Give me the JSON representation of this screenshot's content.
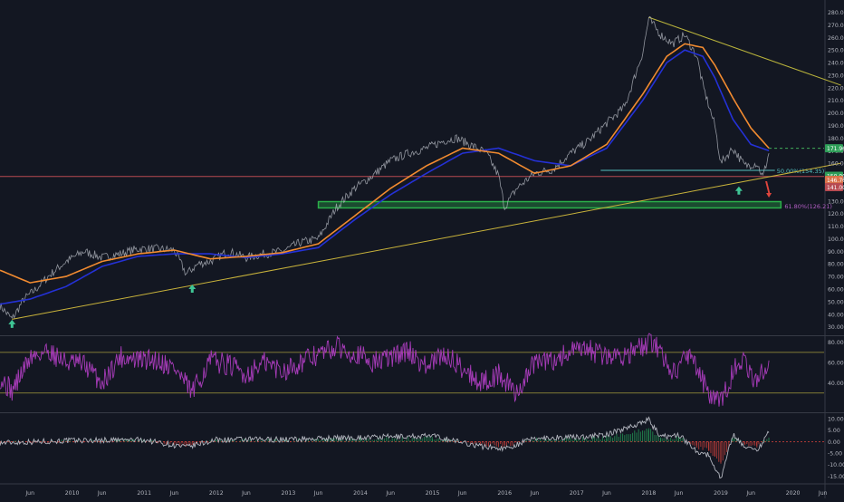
{
  "chart_data": [
    {
      "type": "line",
      "panel": "price",
      "y_scale": "linear",
      "ylim": [
        24,
        284
      ],
      "y_ticks": [
        "30.00",
        "40.00",
        "50.00",
        "60.00",
        "70.00",
        "80.00",
        "90.00",
        "100.00",
        "110.00",
        "120.00",
        "130.00",
        "140.00",
        "150.00",
        "160.00",
        "170.00",
        "180.00",
        "190.00",
        "200.00",
        "210.00",
        "220.00",
        "230.00",
        "240.00",
        "250.00",
        "260.00",
        "270.00",
        "280.00"
      ],
      "series": [
        {
          "role": "price",
          "color": "#b2b5be",
          "x": [
            "2009-01",
            "2009-03",
            "2009-05",
            "2009-07",
            "2009-09",
            "2009-12",
            "2010-03",
            "2010-06",
            "2010-09",
            "2010-12",
            "2011-03",
            "2011-06",
            "2011-08",
            "2011-10",
            "2011-12",
            "2012-03",
            "2012-06",
            "2012-09",
            "2012-12",
            "2013-03",
            "2013-06",
            "2013-09",
            "2013-12",
            "2014-03",
            "2014-06",
            "2014-09",
            "2014-12",
            "2015-03",
            "2015-05",
            "2015-08",
            "2015-10",
            "2015-12",
            "2016-01",
            "2016-03",
            "2016-06",
            "2016-09",
            "2016-12",
            "2017-03",
            "2017-06",
            "2017-09",
            "2017-12",
            "2018-01",
            "2018-03",
            "2018-05",
            "2018-07",
            "2018-09",
            "2018-10",
            "2018-12",
            "2019-01",
            "2019-03",
            "2019-05",
            "2019-07",
            "2019-08",
            "2019-09"
          ],
          "y": [
            47,
            36,
            52,
            60,
            70,
            82,
            90,
            85,
            88,
            92,
            92,
            91,
            72,
            80,
            82,
            90,
            85,
            88,
            90,
            97,
            100,
            125,
            140,
            150,
            162,
            168,
            172,
            178,
            180,
            173,
            168,
            150,
            125,
            140,
            152,
            155,
            168,
            178,
            192,
            205,
            248,
            275,
            262,
            255,
            262,
            245,
            222,
            190,
            160,
            172,
            158,
            160,
            149,
            168
          ]
        },
        {
          "role": "moving-average-1",
          "color": "#2431d6",
          "x": [
            "2009-01",
            "2009-06",
            "2009-12",
            "2010-06",
            "2010-12",
            "2011-06",
            "2011-12",
            "2012-06",
            "2012-12",
            "2013-06",
            "2013-12",
            "2014-06",
            "2014-12",
            "2015-06",
            "2015-12",
            "2016-06",
            "2016-12",
            "2017-06",
            "2017-12",
            "2018-04",
            "2018-07",
            "2018-10",
            "2018-12",
            "2019-03",
            "2019-06",
            "2019-09"
          ],
          "y": [
            48,
            52,
            62,
            78,
            86,
            88,
            88,
            85,
            88,
            93,
            115,
            135,
            152,
            168,
            172,
            162,
            158,
            172,
            210,
            240,
            250,
            245,
            228,
            195,
            175,
            170
          ]
        },
        {
          "role": "moving-average-2",
          "color": "#f28b30",
          "x": [
            "2009-01",
            "2009-06",
            "2009-12",
            "2010-06",
            "2010-12",
            "2011-06",
            "2011-12",
            "2012-06",
            "2012-12",
            "2013-06",
            "2013-12",
            "2014-06",
            "2014-12",
            "2015-06",
            "2015-12",
            "2016-06",
            "2016-12",
            "2017-06",
            "2017-12",
            "2018-04",
            "2018-07",
            "2018-10",
            "2018-12",
            "2019-03",
            "2019-06",
            "2019-09"
          ],
          "y": [
            75,
            65,
            70,
            82,
            88,
            91,
            84,
            86,
            89,
            96,
            118,
            140,
            158,
            172,
            168,
            152,
            158,
            175,
            215,
            245,
            255,
            252,
            238,
            212,
            188,
            172
          ]
        }
      ],
      "trendlines": [
        {
          "name": "long-term-support",
          "color": "#c9b33b",
          "from": [
            "2009-03",
            36
          ],
          "to": [
            "2020-09",
            160
          ]
        },
        {
          "name": "falling-resistance",
          "color": "#b9b33b",
          "from": [
            "2018-01",
            276
          ],
          "to": [
            "2020-09",
            222
          ]
        }
      ],
      "horizontal_lines": [
        {
          "name": "red-level",
          "y": 149.5,
          "color": "#b74a51"
        },
        {
          "name": "green-dashed-level",
          "y": 171.9,
          "color": "#43b05c"
        }
      ],
      "zones": [
        {
          "name": "support-zone",
          "y": [
            124.5,
            129.5
          ],
          "x": [
            "2013-06",
            "2019-11"
          ],
          "color": "#2bb04a"
        }
      ],
      "fib_levels": [
        {
          "label": "50.00%(154.35)",
          "y": 154.35,
          "x": [
            "2017-05",
            "2019-10"
          ],
          "color": "#55c2c0"
        },
        {
          "label": "61.80%(126.21)",
          "y": 126.21,
          "color": "#b35ec4"
        }
      ],
      "price_labels": [
        {
          "text": "171.96",
          "y": 171.96,
          "color": "#2e9e58"
        },
        {
          "text": "150.00",
          "y": 150.0,
          "color": "#2e9e58"
        },
        {
          "text": "146.76",
          "y": 146.76,
          "color": "#d9724a"
        },
        {
          "text": "141.00",
          "y": 141.0,
          "color": "#b74a51"
        }
      ],
      "markers": [
        {
          "kind": "up-arrow",
          "x": "2009-03",
          "y": 32,
          "color": "#3fc595"
        },
        {
          "kind": "up-arrow",
          "x": "2011-09",
          "y": 60,
          "color": "#3fc595"
        },
        {
          "kind": "up-arrow",
          "x": "2019-04",
          "y": 138,
          "color": "#3fc595"
        },
        {
          "kind": "down-arrow",
          "x": "2019-09",
          "y": 140,
          "color": "#e0453d"
        }
      ]
    },
    {
      "type": "line",
      "panel": "rsi",
      "ylim": [
        12,
        85
      ],
      "y_ticks": [
        "40.00",
        "60.00",
        "80.00"
      ],
      "bands": [
        70,
        30
      ],
      "series": [
        {
          "role": "oscillator",
          "color": "#a63bb8",
          "x": [
            "2009-01",
            "2009-03",
            "2009-06",
            "2009-09",
            "2009-12",
            "2010-03",
            "2010-06",
            "2010-09",
            "2010-12",
            "2011-03",
            "2011-06",
            "2011-09",
            "2011-12",
            "2012-03",
            "2012-06",
            "2012-09",
            "2012-12",
            "2013-03",
            "2013-06",
            "2013-09",
            "2013-12",
            "2014-03",
            "2014-06",
            "2014-09",
            "2014-12",
            "2015-03",
            "2015-06",
            "2015-09",
            "2015-12",
            "2016-03",
            "2016-06",
            "2016-09",
            "2016-12",
            "2017-03",
            "2017-06",
            "2017-09",
            "2017-12",
            "2018-02",
            "2018-05",
            "2018-08",
            "2018-11",
            "2019-01",
            "2019-04",
            "2019-07",
            "2019-09"
          ],
          "y": [
            45,
            32,
            65,
            72,
            60,
            58,
            40,
            66,
            62,
            63,
            55,
            30,
            62,
            58,
            48,
            60,
            52,
            60,
            68,
            75,
            70,
            60,
            65,
            72,
            55,
            68,
            55,
            40,
            48,
            30,
            60,
            62,
            70,
            72,
            66,
            68,
            75,
            80,
            50,
            70,
            28,
            20,
            65,
            40,
            62
          ]
        }
      ]
    },
    {
      "type": "line",
      "panel": "momentum",
      "ylim": [
        -18,
        12
      ],
      "y_ticks": [
        "-15.00",
        "-10.00",
        "-5.00",
        "0.00",
        "5.00",
        "10.00"
      ],
      "series": [
        {
          "role": "oscillator",
          "color": "#b2b5be",
          "x": [
            "2009-01",
            "2010-01",
            "2011-01",
            "2011-08",
            "2012-01",
            "2013-01",
            "2014-01",
            "2015-01",
            "2015-09",
            "2016-01",
            "2016-06",
            "2017-01",
            "2017-06",
            "2018-01",
            "2018-03",
            "2018-06",
            "2018-09",
            "2018-11",
            "2018-12",
            "2019-01",
            "2019-03",
            "2019-05",
            "2019-07",
            "2019-09"
          ],
          "y": [
            -0.5,
            0.5,
            0.8,
            -2.5,
            0.8,
            1.0,
            1.8,
            2.5,
            -2.0,
            -3.0,
            1.5,
            2.0,
            3.0,
            9.5,
            2.0,
            3.0,
            -4.0,
            -6.0,
            -11.0,
            -16.0,
            3.0,
            -2.0,
            -4.0,
            4.0
          ]
        }
      ]
    }
  ],
  "x_axis": {
    "ticks": [
      {
        "label": "Jun",
        "date": "2009-06"
      },
      {
        "label": "2010",
        "date": "2010-01"
      },
      {
        "label": "Jun",
        "date": "2010-06"
      },
      {
        "label": "2011",
        "date": "2011-01"
      },
      {
        "label": "Jun",
        "date": "2011-06"
      },
      {
        "label": "2012",
        "date": "2012-01"
      },
      {
        "label": "Jun",
        "date": "2012-06"
      },
      {
        "label": "2013",
        "date": "2013-01"
      },
      {
        "label": "Jun",
        "date": "2013-06"
      },
      {
        "label": "2014",
        "date": "2014-01"
      },
      {
        "label": "Jun",
        "date": "2014-06"
      },
      {
        "label": "2015",
        "date": "2015-01"
      },
      {
        "label": "Jun",
        "date": "2015-06"
      },
      {
        "label": "2016",
        "date": "2016-01"
      },
      {
        "label": "Jun",
        "date": "2016-06"
      },
      {
        "label": "2017",
        "date": "2017-01"
      },
      {
        "label": "Jun",
        "date": "2017-06"
      },
      {
        "label": "2018",
        "date": "2018-01"
      },
      {
        "label": "Jun",
        "date": "2018-06"
      },
      {
        "label": "2019",
        "date": "2019-01"
      },
      {
        "label": "Jun",
        "date": "2019-06"
      },
      {
        "label": "2020",
        "date": "2020-01"
      },
      {
        "label": "Jun",
        "date": "2020-06"
      }
    ]
  },
  "colors": {
    "background": "#131722",
    "axis_text": "#b2b5be",
    "panel_border": "#363a45",
    "band_line": "#a59a3c"
  }
}
